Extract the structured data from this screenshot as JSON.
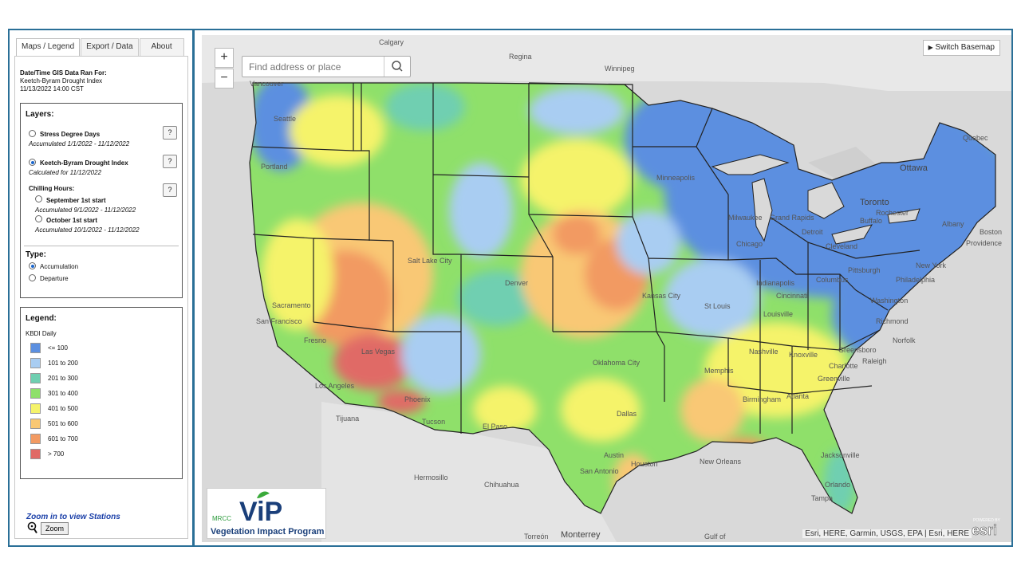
{
  "tabs": [
    "Maps / Legend",
    "Export / Data",
    "About"
  ],
  "datetime": {
    "title": "Date/Time GIS Data Ran For:",
    "index": "Keetch-Byram Drought Index",
    "timestamp": "11/13/2022 14:00 CST"
  },
  "layers": {
    "title": "Layers:",
    "help": "?",
    "stress": {
      "label": "Stress Degree Days",
      "sub": "Accumulated 1/1/2022 - 11/12/2022"
    },
    "kbdi": {
      "label": "Keetch-Byram Drought Index",
      "sub": "Calculated for 11/12/2022"
    },
    "chilling": {
      "label": "Chilling Hours:",
      "sep": {
        "label": "September 1st start",
        "sub": "Accumulated 9/1/2022 - 11/12/2022"
      },
      "oct": {
        "label": "October 1st start",
        "sub": "Accumulated 10/1/2022 - 11/12/2022"
      }
    },
    "type": {
      "title": "Type:",
      "accumulation": "Accumulation",
      "departure": "Departure"
    }
  },
  "legend": {
    "title": "Legend:",
    "subtitle": "KBDI Daily",
    "items": [
      {
        "label": "<= 100",
        "color": "#5b8fe0"
      },
      {
        "label": "101 to 200",
        "color": "#a9cdf2"
      },
      {
        "label": "201 to 300",
        "color": "#6fcfb1"
      },
      {
        "label": "301 to 400",
        "color": "#8fe06a"
      },
      {
        "label": "401 to 500",
        "color": "#f5f36a"
      },
      {
        "label": "501 to 600",
        "color": "#f9c874"
      },
      {
        "label": "601 to 700",
        "color": "#f29a62"
      },
      {
        "label": "> 700",
        "color": "#e06a66"
      }
    ]
  },
  "stations": {
    "link": "Zoom in to view Stations",
    "button": "Zoom"
  },
  "map": {
    "zoom_in": "+",
    "zoom_out": "−",
    "search_placeholder": "Find address or place",
    "basemap": "Switch Basemap",
    "attribution": "Esri, HERE, Garmin, USGS, EPA | Esri, HERE",
    "esri_powered": "POWERED BY",
    "esri": "esri",
    "logo_mrcc": "MRCC",
    "logo_vip": "ViP",
    "logo_program": "Vegetation Impact Program",
    "cities": [
      "Calgary",
      "Regina",
      "Winnipeg",
      "Vancouver",
      "Seattle",
      "Portland",
      "Quebec",
      "Ottawa",
      "Toronto",
      "Minneapolis",
      "Milwaukee",
      "Grand Rapids",
      "Detroit",
      "Buffalo",
      "Rochester",
      "Albany",
      "Boston",
      "Providence",
      "Chicago",
      "Cleveland",
      "Pittsburgh",
      "New York",
      "Philadelphia",
      "Columbus",
      "Indianapolis",
      "Cincinnati",
      "Denver",
      "Salt Lake City",
      "Kansas City",
      "St Louis",
      "Louisville",
      "Washington",
      "Richmond",
      "Norfolk",
      "Sacramento",
      "San Francisco",
      "Fresno",
      "Las Vegas",
      "Los Angeles",
      "Tijuana",
      "Phoenix",
      "Tucson",
      "Oklahoma City",
      "Nashville",
      "Knoxville",
      "Greensboro",
      "Raleigh",
      "Charlotte",
      "Memphis",
      "Greenville",
      "Atlanta",
      "Birmingham",
      "El Paso",
      "Dallas",
      "Austin",
      "San Antonio",
      "Houston",
      "New Orleans",
      "Jacksonville",
      "Orlando",
      "Tampa",
      "Hermosillo",
      "Chihuahua",
      "Torreón",
      "Monterrey",
      "Gulf of"
    ]
  }
}
